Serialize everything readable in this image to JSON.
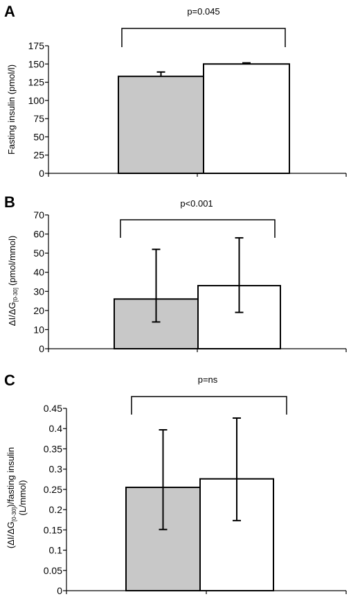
{
  "chart_data": [
    {
      "panel": "A",
      "type": "bar",
      "annotation": "p=0.045",
      "ylabel": "Fasting insulin (pmol/l)",
      "ylim": [
        0,
        175
      ],
      "yticks": [
        "0",
        "25",
        "50",
        "75",
        "100",
        "125",
        "150",
        "175"
      ],
      "values": [
        133,
        150
      ],
      "errors": [
        6,
        1.5
      ],
      "colors": [
        "#c8c8c8",
        "#ffffff"
      ]
    },
    {
      "panel": "B",
      "type": "bar",
      "annotation": "p<0.001",
      "ylabel_main": "ΔI/ΔG",
      "ylabel_sub": "[0-30]",
      "ylabel_rest": "(pmol/mmol)",
      "ylim": [
        0,
        70
      ],
      "yticks": [
        "0",
        "10",
        "20",
        "30",
        "40",
        "50",
        "60",
        "70"
      ],
      "values": [
        26,
        33
      ],
      "err_low": [
        14,
        19
      ],
      "err_high": [
        52,
        58
      ],
      "colors": [
        "#c8c8c8",
        "#ffffff"
      ]
    },
    {
      "panel": "C",
      "type": "bar",
      "annotation": "p=ns",
      "ylabel_main": "(ΔI/ΔG",
      "ylabel_sub": "[0-30]",
      "ylabel_rest": ")/fasting insulin",
      "ylabel_line2": "(L/mmol)",
      "ylim": [
        0,
        0.45
      ],
      "yticks": [
        "0",
        "0.05",
        "0.1",
        "0.15",
        "0.2",
        "0.25",
        "0.3",
        "0.35",
        "0.4",
        "0.45"
      ],
      "values": [
        0.255,
        0.276
      ],
      "err_low": [
        0.151,
        0.173
      ],
      "err_high": [
        0.397,
        0.426
      ],
      "colors": [
        "#c8c8c8",
        "#ffffff"
      ]
    }
  ]
}
